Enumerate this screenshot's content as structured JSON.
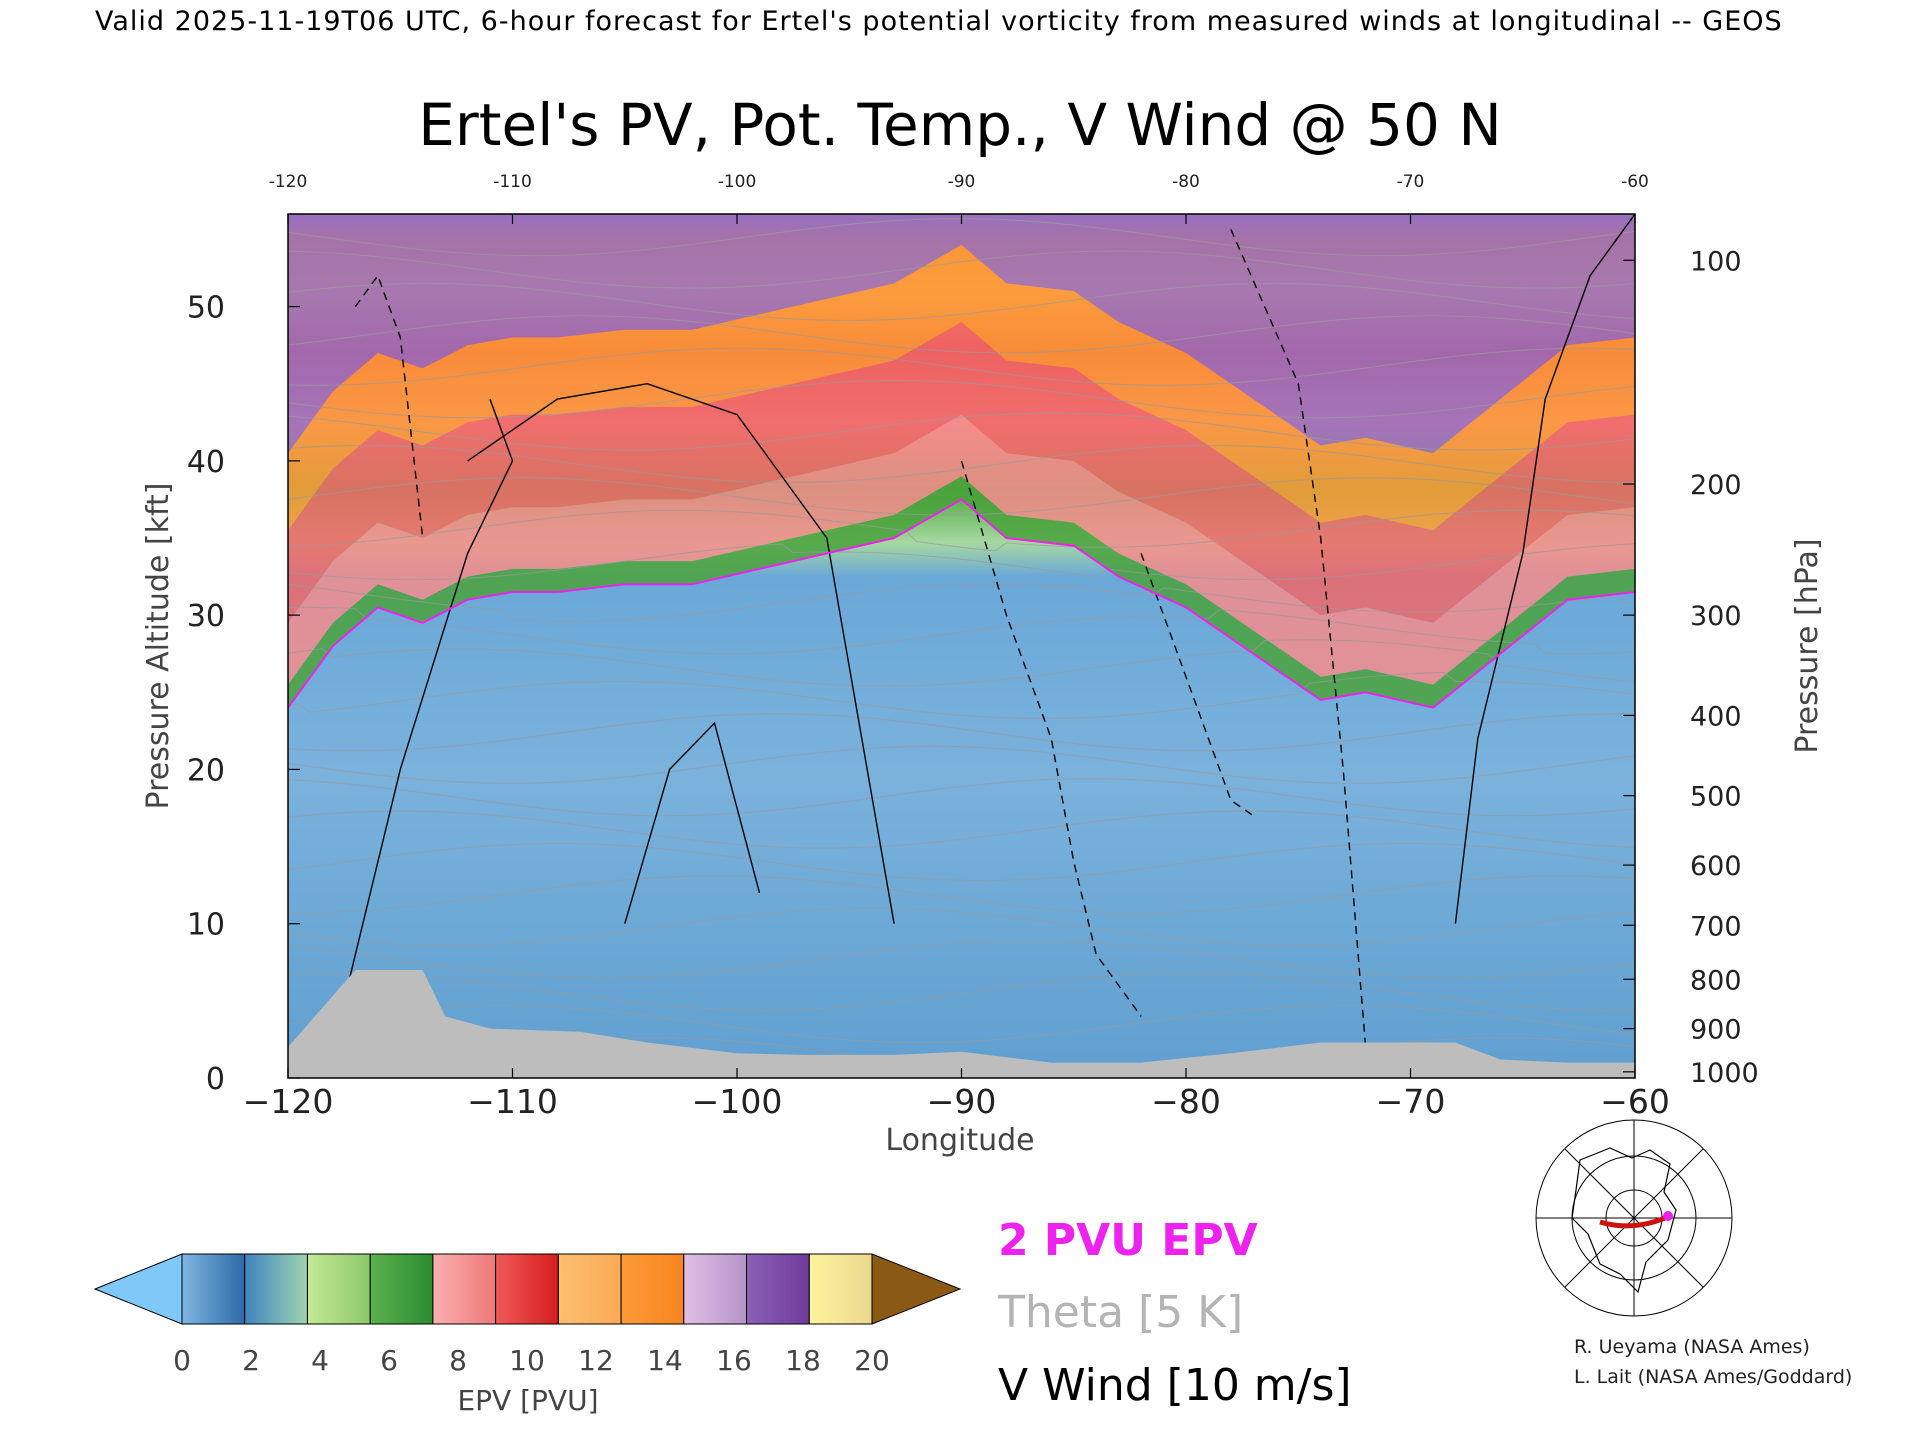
{
  "header": {
    "text": "Valid 2025-11-19T06 UTC, 6-hour forecast for Ertel's potential vorticity from measured winds at longitudinal -- GEOS"
  },
  "chart_data": {
    "type": "heatmap",
    "title": "Ertel's PV, Pot. Temp., V Wind @ 50 N",
    "xlabel": "Longitude",
    "ylabel": "Pressure Altitude [kft]",
    "y2label": "Pressure [hPa]",
    "xlim": [
      -120,
      -60
    ],
    "ylim": [
      0,
      56
    ],
    "x_ticks_bottom": [
      "−120",
      "−110",
      "−100",
      "−90",
      "−80",
      "−70",
      "−60"
    ],
    "x_ticks_top": [
      "-120",
      "-110",
      "-100",
      "-90",
      "-80",
      "-70",
      "-60"
    ],
    "y_ticks": [
      {
        "value": 0,
        "label": "0"
      },
      {
        "value": 10,
        "label": "10"
      },
      {
        "value": 20,
        "label": "20"
      },
      {
        "value": 30,
        "label": "30"
      },
      {
        "value": 40,
        "label": "40"
      },
      {
        "value": 50,
        "label": "50"
      }
    ],
    "pressure_ticks": [
      {
        "kft": 53.0,
        "label": "100"
      },
      {
        "kft": 38.5,
        "label": "200"
      },
      {
        "kft": 30.0,
        "label": "300"
      },
      {
        "kft": 23.5,
        "label": "400"
      },
      {
        "kft": 18.3,
        "label": "500"
      },
      {
        "kft": 13.8,
        "label": "600"
      },
      {
        "kft": 9.9,
        "label": "700"
      },
      {
        "kft": 6.4,
        "label": "800"
      },
      {
        "kft": 3.2,
        "label": "900"
      },
      {
        "kft": 0.4,
        "label": "1000"
      }
    ],
    "tropopause_2pvu_kft": [
      {
        "lon": -120,
        "kft": 24.0
      },
      {
        "lon": -118,
        "kft": 28.0
      },
      {
        "lon": -116,
        "kft": 30.5
      },
      {
        "lon": -114,
        "kft": 29.5
      },
      {
        "lon": -112,
        "kft": 31.0
      },
      {
        "lon": -110,
        "kft": 31.5
      },
      {
        "lon": -108,
        "kft": 31.5
      },
      {
        "lon": -105,
        "kft": 32.0
      },
      {
        "lon": -102,
        "kft": 32.0
      },
      {
        "lon": -99,
        "kft": 33.0
      },
      {
        "lon": -96,
        "kft": 34.0
      },
      {
        "lon": -93,
        "kft": 35.0
      },
      {
        "lon": -90,
        "kft": 37.5
      },
      {
        "lon": -88,
        "kft": 35.0
      },
      {
        "lon": -85,
        "kft": 34.5
      },
      {
        "lon": -83,
        "kft": 32.5
      },
      {
        "lon": -80,
        "kft": 30.5
      },
      {
        "lon": -77,
        "kft": 27.5
      },
      {
        "lon": -74,
        "kft": 24.5
      },
      {
        "lon": -72,
        "kft": 25.0
      },
      {
        "lon": -69,
        "kft": 24.0
      },
      {
        "lon": -66,
        "kft": 27.5
      },
      {
        "lon": -63,
        "kft": 31.0
      },
      {
        "lon": -60,
        "kft": 31.5
      }
    ],
    "colorbar": {
      "label": "EPV [PVU]",
      "ticks": [
        "0",
        "2",
        "4",
        "6",
        "8",
        "10",
        "12",
        "14",
        "16",
        "18",
        "20"
      ],
      "under_color": "#7fc8f8",
      "over_color": "#8a5a14",
      "bins": [
        [
          "#7fb7e0",
          "#2c6aa8"
        ],
        [
          "#3f84c0",
          "#9fd4b0"
        ],
        [
          "#c5e896",
          "#8cc86a"
        ],
        [
          "#5cb04c",
          "#2a8c32"
        ],
        [
          "#f8b0b0",
          "#f07878"
        ],
        [
          "#f05858",
          "#d41e1e"
        ],
        [
          "#fcc070",
          "#fcaa56"
        ],
        [
          "#fc9a3a",
          "#f8861e"
        ],
        [
          "#e0c0e4",
          "#b494c8"
        ],
        [
          "#8a60b4",
          "#6e3c9c"
        ],
        [
          "#fcf49c",
          "#ecd890"
        ]
      ]
    },
    "legend": [
      {
        "label": "2 PVU EPV",
        "color": "#ee22ee"
      },
      {
        "label": "Theta [5 K]",
        "color": "#b4b4b4"
      },
      {
        "label": "V Wind [10 m/s]",
        "color": "#000000"
      }
    ],
    "colors": {
      "troposphere": "#6aaad8",
      "transition": "#4aa23c",
      "lower_strat": "#f06868",
      "upper_strat": "#fc9a3a",
      "top": "#9870c0",
      "terrain": "#bdbdbd",
      "tropopause": "#ee22ee"
    }
  },
  "credits": {
    "line1": "R. Ueyama (NASA Ames)",
    "line2": "L. Lait (NASA Ames/Goddard)"
  }
}
